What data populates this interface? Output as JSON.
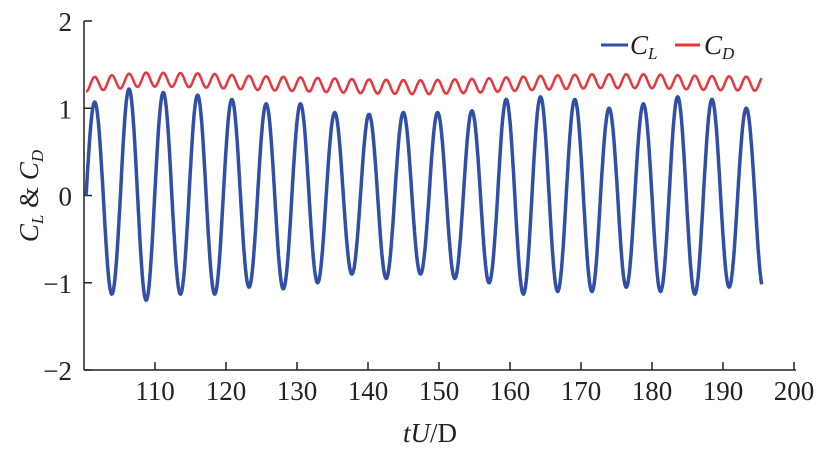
{
  "chart_data": {
    "type": "line",
    "title": "",
    "xlabel": "tU/D",
    "xlabel_parts": {
      "t": "t",
      "U": "U",
      "rest": "/D"
    },
    "ylabel": "C_L & C_D",
    "ylabel_parts": {
      "c1": "C",
      "s1": "L",
      "amp": " & ",
      "c2": "C",
      "s2": "D"
    },
    "xlim": [
      100,
      200
    ],
    "ylim": [
      -2,
      2
    ],
    "xticks": [
      110,
      120,
      130,
      140,
      150,
      160,
      170,
      180,
      190,
      200
    ],
    "xtick_labels": [
      "110",
      "120",
      "130",
      "140",
      "150",
      "160",
      "170",
      "180",
      "190",
      "200"
    ],
    "yticks": [
      -2,
      -1,
      0,
      1,
      2
    ],
    "ytick_labels": [
      "−2",
      "−1",
      "0",
      "1",
      "2"
    ],
    "grid": false,
    "legend_position": "top-right",
    "series": [
      {
        "name": "C_L",
        "label_main": "C",
        "label_sub": "L",
        "color": "#2f4fa8",
        "t_start": 100.3,
        "t_end": 195.5,
        "period": 4.83,
        "extrema": [
          1.07,
          -1.13,
          1.22,
          -1.2,
          1.18,
          -1.13,
          1.15,
          -1.13,
          1.1,
          -1.05,
          1.05,
          -1.07,
          1.05,
          -1.0,
          0.95,
          -0.9,
          0.93,
          -0.95,
          0.95,
          -0.9,
          0.95,
          -0.95,
          0.97,
          -1.0,
          1.1,
          -1.13,
          1.13,
          -1.1,
          1.1,
          -1.1,
          1.0,
          -1.05,
          1.05,
          -1.1,
          1.13,
          -1.13,
          1.1,
          -1.05,
          1.0,
          -1.07,
          0.98
        ]
      },
      {
        "name": "C_D",
        "label_main": "C",
        "label_sub": "D",
        "color": "#e8383d",
        "t_start": 100.3,
        "t_end": 195.5,
        "period": 2.415,
        "mean": 1.28,
        "amplitude": 0.08,
        "mean_profile": [
          1.27,
          1.33,
          1.32,
          1.29,
          1.27,
          1.25,
          1.24,
          1.26,
          1.29,
          1.31,
          1.31,
          1.29,
          1.28
        ]
      }
    ]
  }
}
